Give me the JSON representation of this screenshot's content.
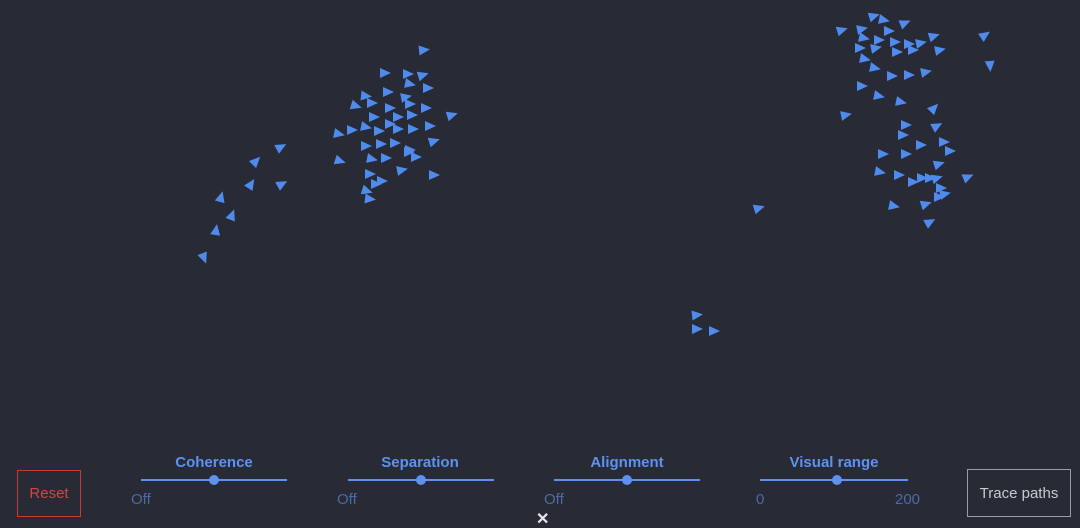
{
  "buttons": {
    "reset": "Reset",
    "trace": "Trace paths"
  },
  "sliders": [
    {
      "id": "coherence",
      "label": "Coherence",
      "min_label": "Off",
      "max_label": "",
      "value": 0.5
    },
    {
      "id": "separation",
      "label": "Separation",
      "min_label": "Off",
      "max_label": "",
      "value": 0.5
    },
    {
      "id": "alignment",
      "label": "Alignment",
      "min_label": "Off",
      "max_label": "",
      "value": 0.5
    },
    {
      "id": "visual_range",
      "label": "Visual range",
      "min_label": "0",
      "max_label": "200",
      "value": 0.52
    }
  ],
  "colors": {
    "background": "#282a35",
    "boid": "#4f8bed",
    "accent": "#5e92f0",
    "reset": "#d64545"
  },
  "icons": {
    "close": "close-icon"
  }
}
